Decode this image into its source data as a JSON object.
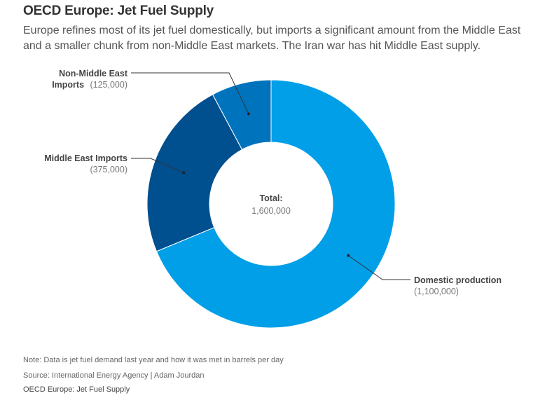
{
  "header": {
    "title": "OECD Europe: Jet Fuel Supply",
    "subtitle": "Europe refines most of its jet fuel domestically, but imports a significant amount from the Middle East and a smaller chunk from non-Middle East markets. The Iran war has hit Middle East supply."
  },
  "chart_data": {
    "type": "pie",
    "donut": true,
    "categories": [
      "Domestic production",
      "Middle East Imports",
      "Non-Middle East Imports"
    ],
    "values": [
      1100000,
      375000,
      125000
    ],
    "value_labels": [
      "(1,100,000)",
      "(375,000)",
      "(125,000)"
    ],
    "colors": [
      "#009FE8",
      "#004F8F",
      "#0073BD"
    ],
    "center_title": "Total:",
    "center_value": "1,600,000",
    "label_lines": {
      "nonme": [
        "Non-Middle East",
        "Imports"
      ]
    }
  },
  "footer": {
    "note": "Note: Data is jet fuel demand last year and how it was met in barrels per day",
    "source": "Source: International Energy Agency | Adam Jourdan",
    "credit": "OECD Europe: Jet Fuel Supply"
  }
}
